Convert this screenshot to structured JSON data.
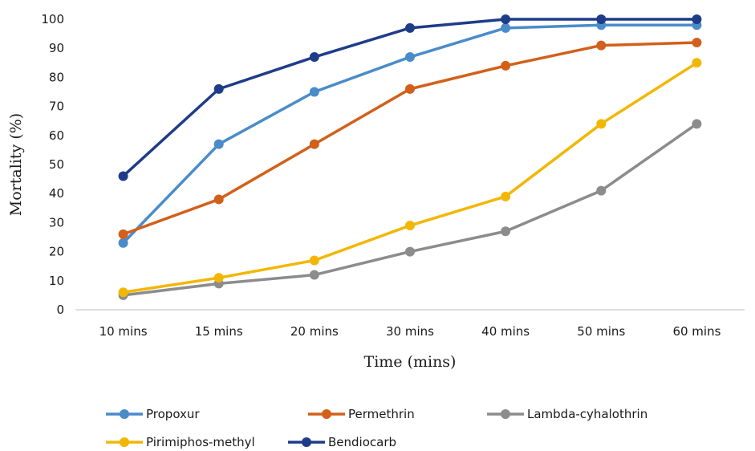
{
  "chart_data": {
    "type": "line",
    "title": "",
    "xlabel": "Time (mins)",
    "ylabel": "Mortality (%)",
    "categories": [
      "10 mins",
      "15 mins",
      "20 mins",
      "30 mins",
      "40 mins",
      "50 mins",
      "60 mins"
    ],
    "ylim": [
      0,
      100
    ],
    "yticks": [
      0,
      10,
      20,
      30,
      40,
      50,
      60,
      70,
      80,
      90,
      100
    ],
    "grid": false,
    "legend_position": "bottom",
    "series": [
      {
        "name": "Propoxur",
        "color": "#4a8cc9",
        "values": [
          23,
          57,
          75,
          87,
          97,
          98,
          98
        ]
      },
      {
        "name": "Permethrin",
        "color": "#d2601a",
        "values": [
          26,
          38,
          57,
          76,
          84,
          91,
          92
        ]
      },
      {
        "name": "Lambda-cyhalothrin",
        "color": "#8c8c8c",
        "values": [
          5,
          9,
          12,
          20,
          27,
          41,
          64
        ]
      },
      {
        "name": "Pirimiphos-methyl",
        "color": "#f2b705",
        "values": [
          6,
          11,
          17,
          29,
          39,
          64,
          85
        ]
      },
      {
        "name": "Bendiocarb",
        "color": "#1f3c88",
        "values": [
          46,
          76,
          87,
          97,
          100,
          100,
          100
        ]
      }
    ]
  }
}
